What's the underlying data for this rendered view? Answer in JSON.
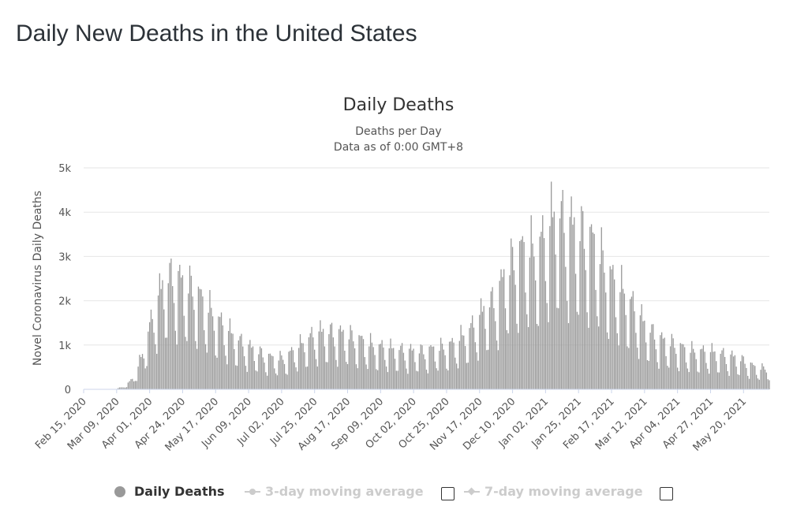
{
  "page": {
    "title": "Daily New Deaths in the United States"
  },
  "chart_data": {
    "type": "bar",
    "title": "Daily Deaths",
    "subtitle_line1": "Deaths per Day",
    "subtitle_line2": "Data as of 0:00 GMT+8",
    "ylabel": "Novel Coronavirus Daily Deaths",
    "xlabel": "",
    "ylim": [
      0,
      5000
    ],
    "yticks": [
      0,
      1000,
      2000,
      3000,
      4000,
      5000
    ],
    "ytick_labels": [
      "0",
      "1k",
      "2k",
      "3k",
      "4k",
      "5k"
    ],
    "x_start": "2020-02-15",
    "x_end": "2021-06-07",
    "x_tick_labels": [
      {
        "date": "2020-02-15",
        "label": "Feb 15, 2020"
      },
      {
        "date": "2020-03-09",
        "label": "Mar 09, 2020"
      },
      {
        "date": "2020-04-01",
        "label": "Apr 01, 2020"
      },
      {
        "date": "2020-04-24",
        "label": "Apr 24, 2020"
      },
      {
        "date": "2020-05-17",
        "label": "May 17, 2020"
      },
      {
        "date": "2020-06-09",
        "label": "Jun 09, 2020"
      },
      {
        "date": "2020-07-02",
        "label": "Jul 02, 2020"
      },
      {
        "date": "2020-07-25",
        "label": "Jul 25, 2020"
      },
      {
        "date": "2020-08-17",
        "label": "Aug 17, 2020"
      },
      {
        "date": "2020-09-09",
        "label": "Sep 09, 2020"
      },
      {
        "date": "2020-10-02",
        "label": "Oct 02, 2020"
      },
      {
        "date": "2020-10-25",
        "label": "Oct 25, 2020"
      },
      {
        "date": "2020-11-17",
        "label": "Nov 17, 2020"
      },
      {
        "date": "2020-12-10",
        "label": "Dec 10, 2020"
      },
      {
        "date": "2021-01-02",
        "label": "Jan 02, 2021"
      },
      {
        "date": "2021-01-25",
        "label": "Jan 25, 2021"
      },
      {
        "date": "2021-02-17",
        "label": "Feb 17, 2021"
      },
      {
        "date": "2021-03-12",
        "label": "Mar 12, 2021"
      },
      {
        "date": "2021-04-04",
        "label": "Apr 04, 2021"
      },
      {
        "date": "2021-04-27",
        "label": "Apr 27, 2021"
      },
      {
        "date": "2021-05-20",
        "label": "May 20, 2021"
      }
    ],
    "grid": true,
    "legend_placement": "bottom",
    "weekly_averages": [
      {
        "week_of": "2020-02-15",
        "value": 0
      },
      {
        "week_of": "2020-02-22",
        "value": 0
      },
      {
        "week_of": "2020-02-29",
        "value": 2
      },
      {
        "week_of": "2020-03-07",
        "value": 8
      },
      {
        "week_of": "2020-03-14",
        "value": 45
      },
      {
        "week_of": "2020-03-21",
        "value": 220
      },
      {
        "week_of": "2020-03-28",
        "value": 750
      },
      {
        "week_of": "2020-04-04",
        "value": 1500
      },
      {
        "week_of": "2020-04-11",
        "value": 2050
      },
      {
        "week_of": "2020-04-18",
        "value": 2150
      },
      {
        "week_of": "2020-04-25",
        "value": 2000
      },
      {
        "week_of": "2020-05-02",
        "value": 1900
      },
      {
        "week_of": "2020-05-09",
        "value": 1650
      },
      {
        "week_of": "2020-05-16",
        "value": 1400
      },
      {
        "week_of": "2020-05-23",
        "value": 1200
      },
      {
        "week_of": "2020-05-30",
        "value": 1000
      },
      {
        "week_of": "2020-06-06",
        "value": 850
      },
      {
        "week_of": "2020-06-13",
        "value": 750
      },
      {
        "week_of": "2020-06-20",
        "value": 650
      },
      {
        "week_of": "2020-06-27",
        "value": 580
      },
      {
        "week_of": "2020-07-04",
        "value": 600
      },
      {
        "week_of": "2020-07-11",
        "value": 750
      },
      {
        "week_of": "2020-07-18",
        "value": 900
      },
      {
        "week_of": "2020-07-25",
        "value": 1050
      },
      {
        "week_of": "2020-08-01",
        "value": 1100
      },
      {
        "week_of": "2020-08-08",
        "value": 1070
      },
      {
        "week_of": "2020-08-15",
        "value": 1050
      },
      {
        "week_of": "2020-08-22",
        "value": 980
      },
      {
        "week_of": "2020-08-29",
        "value": 900
      },
      {
        "week_of": "2020-09-05",
        "value": 820
      },
      {
        "week_of": "2020-09-12",
        "value": 800
      },
      {
        "week_of": "2020-09-19",
        "value": 760
      },
      {
        "week_of": "2020-09-26",
        "value": 740
      },
      {
        "week_of": "2020-10-03",
        "value": 720
      },
      {
        "week_of": "2020-10-10",
        "value": 730
      },
      {
        "week_of": "2020-10-17",
        "value": 770
      },
      {
        "week_of": "2020-10-24",
        "value": 810
      },
      {
        "week_of": "2020-10-31",
        "value": 880
      },
      {
        "week_of": "2020-11-07",
        "value": 1050
      },
      {
        "week_of": "2020-11-14",
        "value": 1250
      },
      {
        "week_of": "2020-11-21",
        "value": 1550
      },
      {
        "week_of": "2020-11-28",
        "value": 1700
      },
      {
        "week_of": "2020-12-05",
        "value": 2200
      },
      {
        "week_of": "2020-12-12",
        "value": 2500
      },
      {
        "week_of": "2020-12-19",
        "value": 2700
      },
      {
        "week_of": "2020-12-26",
        "value": 2600
      },
      {
        "week_of": "2021-01-02",
        "value": 2950
      },
      {
        "week_of": "2021-01-09",
        "value": 3350
      },
      {
        "week_of": "2021-01-16",
        "value": 3150
      },
      {
        "week_of": "2021-01-23",
        "value": 3050
      },
      {
        "week_of": "2021-01-30",
        "value": 2900
      },
      {
        "week_of": "2021-02-06",
        "value": 2750
      },
      {
        "week_of": "2021-02-13",
        "value": 2300
      },
      {
        "week_of": "2021-02-20",
        "value": 2000
      },
      {
        "week_of": "2021-02-27",
        "value": 1800
      },
      {
        "week_of": "2021-03-06",
        "value": 1500
      },
      {
        "week_of": "2021-03-13",
        "value": 1200
      },
      {
        "week_of": "2021-03-20",
        "value": 1000
      },
      {
        "week_of": "2021-03-27",
        "value": 900
      },
      {
        "week_of": "2021-04-03",
        "value": 850
      },
      {
        "week_of": "2021-04-10",
        "value": 750
      },
      {
        "week_of": "2021-04-17",
        "value": 720
      },
      {
        "week_of": "2021-04-24",
        "value": 720
      },
      {
        "week_of": "2021-05-01",
        "value": 700
      },
      {
        "week_of": "2021-05-08",
        "value": 650
      },
      {
        "week_of": "2021-05-15",
        "value": 600
      },
      {
        "week_of": "2021-05-22",
        "value": 520
      },
      {
        "week_of": "2021-05-29",
        "value": 400
      },
      {
        "week_of": "2021-06-05",
        "value": 400
      }
    ],
    "series": [
      {
        "name": "Daily Deaths",
        "color": "#999999"
      }
    ]
  },
  "legend": {
    "items": [
      {
        "label": "Daily Deaths",
        "color": "#999999",
        "active": true
      },
      {
        "label": "3-day moving average",
        "color": "#cccccc",
        "active": false
      },
      {
        "label": "7-day moving average",
        "color": "#cccccc",
        "active": false
      }
    ]
  }
}
